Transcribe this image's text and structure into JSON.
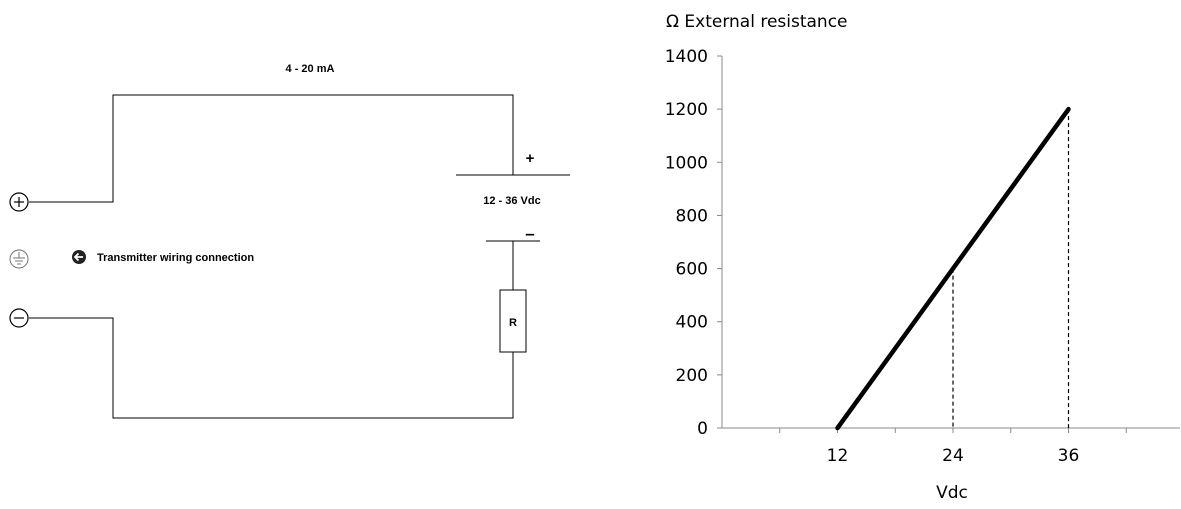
{
  "circuit": {
    "current_label": "4 - 20 mA",
    "supply_plus": "+",
    "supply_minus": "–",
    "supply_label": "12 - 36 Vdc",
    "resistor_label": "R",
    "legend_text": "Transmitter wiring connection",
    "legend_icon": "arrow-left-circle-icon",
    "terminals": [
      "plus-terminal-icon",
      "earth-terminal-icon",
      "minus-terminal-icon"
    ]
  },
  "chart_data": {
    "type": "line",
    "ylabel": "Ω External resistance",
    "xlabel": "Vdc",
    "x_ticks": [
      12,
      24,
      36
    ],
    "y_ticks": [
      0,
      200,
      400,
      600,
      800,
      1000,
      1200,
      1400
    ],
    "xlim": [
      0,
      48
    ],
    "ylim": [
      0,
      1400
    ],
    "grid": false,
    "series": [
      {
        "x": [
          12,
          36
        ],
        "y": [
          0,
          1200
        ]
      }
    ],
    "reference_lines": [
      {
        "x": 24,
        "y": 600,
        "style": "dashed"
      },
      {
        "x": 36,
        "y": 1200,
        "style": "dashed"
      }
    ]
  }
}
